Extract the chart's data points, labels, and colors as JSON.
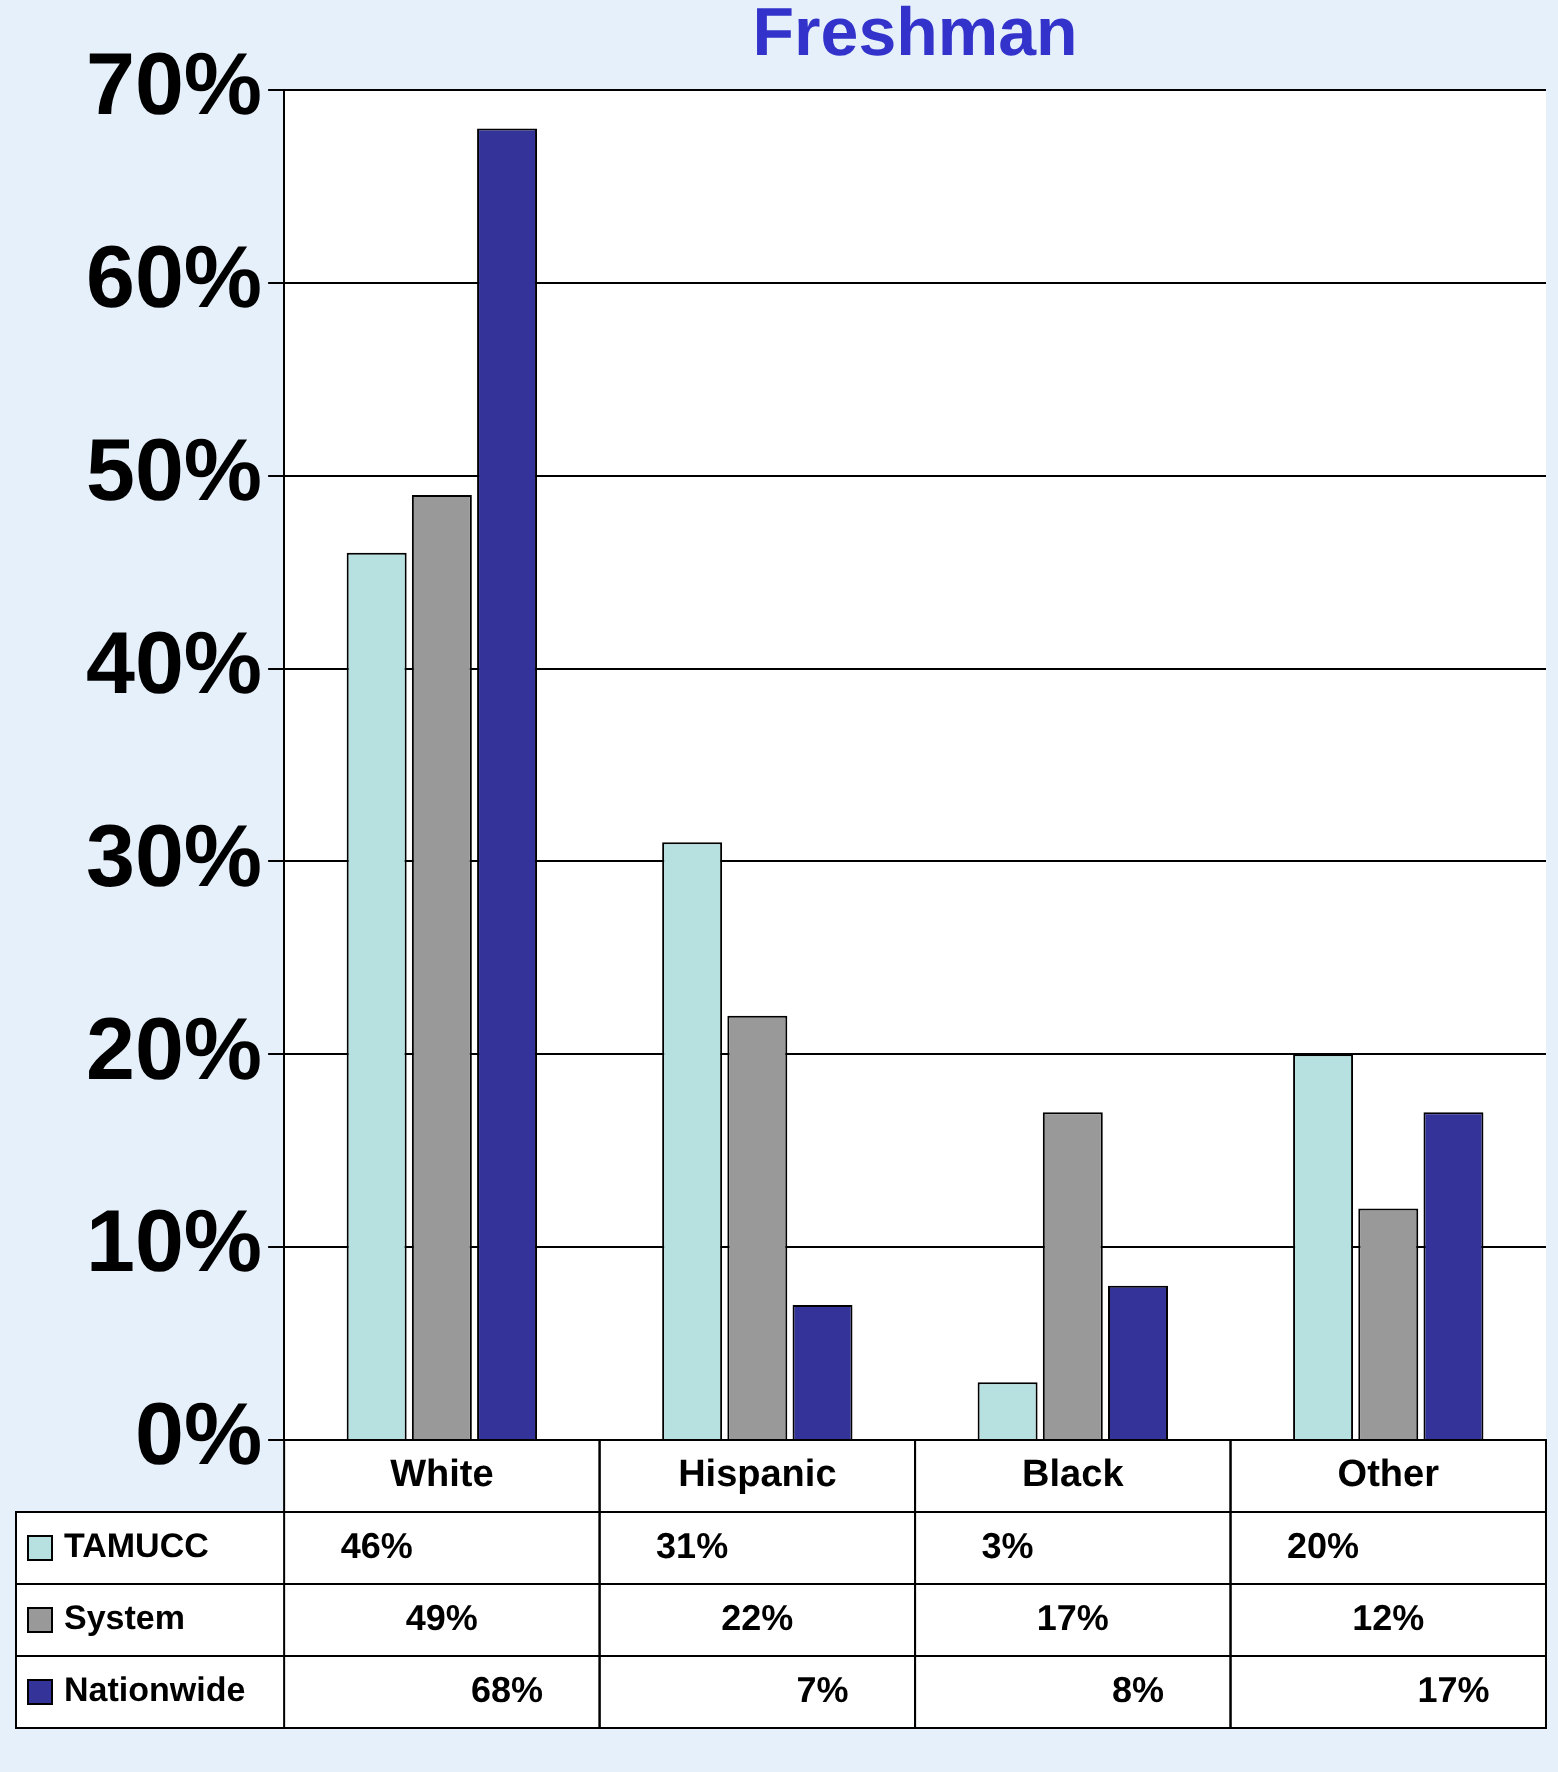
{
  "chart_data": {
    "type": "bar",
    "title": "Freshman",
    "categories": [
      "White",
      "Hispanic",
      "Black",
      "Other"
    ],
    "series": [
      {
        "name": "TAMUCC",
        "color": "#b7e0e0",
        "values": [
          46,
          31,
          3,
          20
        ],
        "value_labels": [
          "46%",
          "31%",
          "3%",
          "20%"
        ]
      },
      {
        "name": "System",
        "color": "#999999",
        "values": [
          49,
          22,
          17,
          12
        ],
        "value_labels": [
          "49%",
          "22%",
          "17%",
          "12%"
        ]
      },
      {
        "name": "Nationwide",
        "color": "#333399",
        "values": [
          68,
          7,
          8,
          17
        ],
        "value_labels": [
          "68%",
          "7%",
          "8%",
          "17%"
        ]
      }
    ],
    "ylim": [
      0,
      70
    ],
    "yticks": [
      {
        "value": 0,
        "label": "0%"
      },
      {
        "value": 10,
        "label": "10%"
      },
      {
        "value": 20,
        "label": "20%"
      },
      {
        "value": 30,
        "label": "30%"
      },
      {
        "value": 40,
        "label": "40%"
      },
      {
        "value": 50,
        "label": "50%"
      },
      {
        "value": 60,
        "label": "60%"
      },
      {
        "value": 70,
        "label": "70%"
      }
    ],
    "grid": "y",
    "legend": "bottom"
  }
}
